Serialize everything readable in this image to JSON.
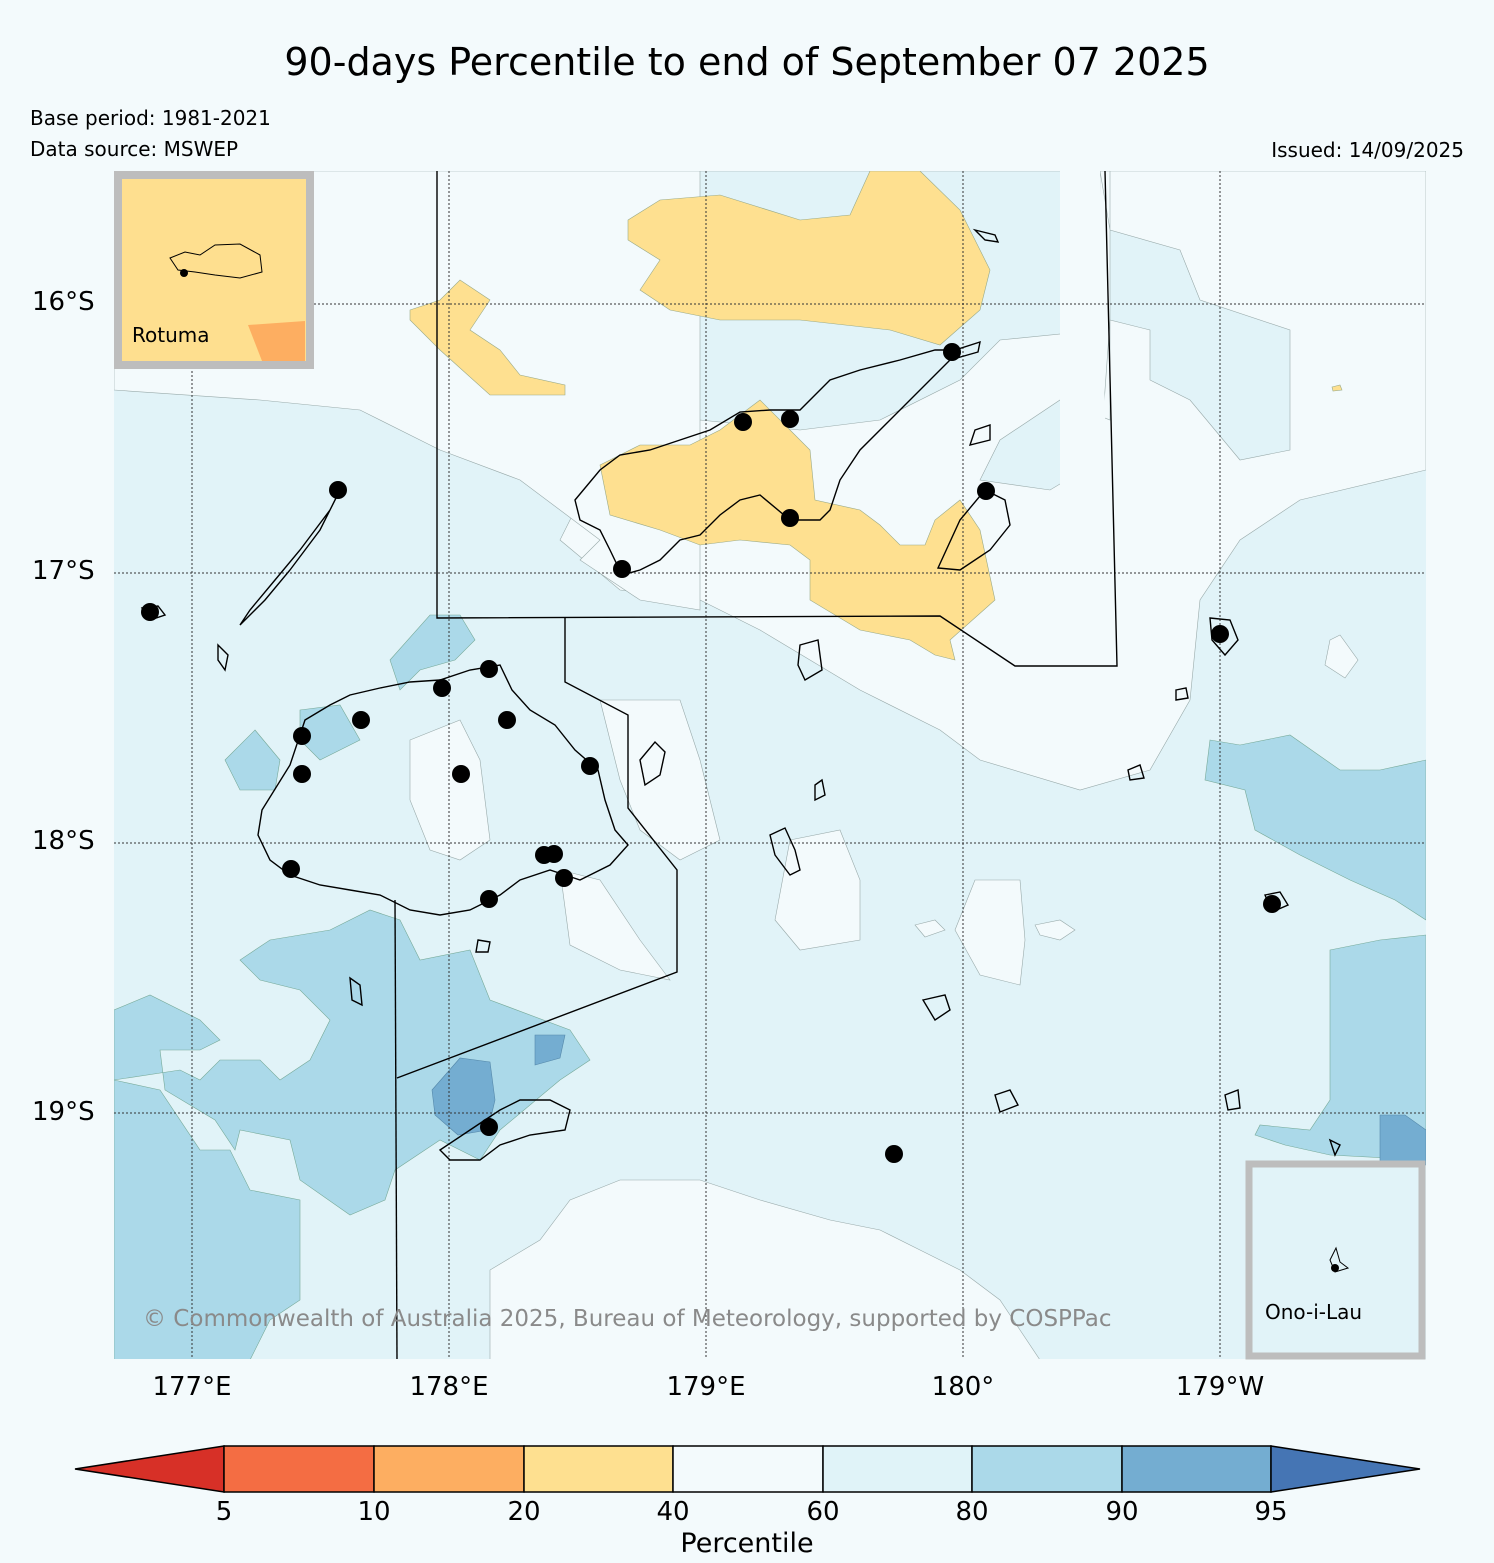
{
  "title": "90-days Percentile to end of September 07 2025",
  "meta": {
    "base_period": "Base period: 1981-2021",
    "data_source": "Data source: MSWEP",
    "issued": "Issued: 14/09/2025"
  },
  "map": {
    "latitude_labels": [
      "16°S",
      "17°S",
      "18°S",
      "19°S"
    ],
    "longitude_labels": [
      "177°E",
      "178°E",
      "179°E",
      "180°",
      "179°W"
    ],
    "insets": [
      {
        "name": "Rotuma",
        "fill_color": "#fedf8f"
      },
      {
        "name": "Ono-i-Lau",
        "fill_color": "#e1f3f8"
      }
    ],
    "credit": "© Commonwealth of Australia 2025, Bureau of Meteorology, supported by COSPPac",
    "background_color": "#e1f3f8"
  },
  "colorbar": {
    "title": "Percentile",
    "ticks": [
      "5",
      "10",
      "20",
      "40",
      "60",
      "80",
      "90",
      "95"
    ],
    "colors": {
      "below_5": "#d73027",
      "5_10": "#f46d43",
      "10_20": "#fdae61",
      "20_40": "#fee090",
      "40_60": "#f3fafc",
      "60_80": "#e0f3f8",
      "80_90": "#abd9e9",
      "90_95": "#74add1",
      "above_95": "#4575b4"
    }
  }
}
